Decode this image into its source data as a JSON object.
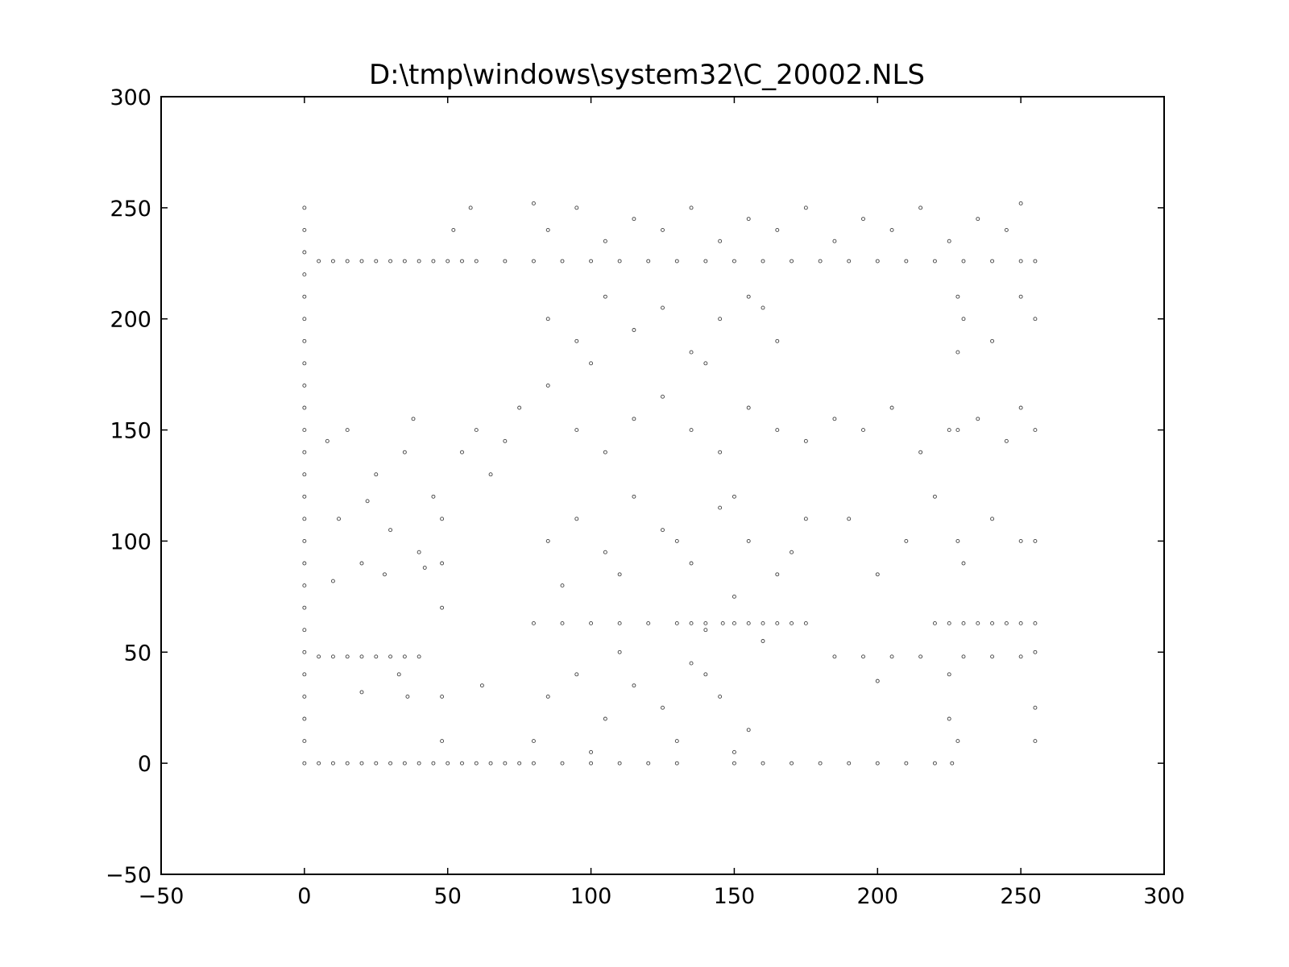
{
  "chart_data": {
    "type": "scatter",
    "title": "D:\\tmp\\windows\\system32\\C_20002.NLS",
    "xlabel": "",
    "ylabel": "",
    "xlim": [
      -50,
      300
    ],
    "ylim": [
      -50,
      300
    ],
    "xticks": [
      -50,
      0,
      50,
      100,
      150,
      200,
      250,
      300
    ],
    "yticks": [
      -50,
      0,
      50,
      100,
      150,
      200,
      250,
      300
    ],
    "xtick_labels": [
      "−50",
      "0",
      "50",
      "100",
      "150",
      "200",
      "250",
      "300"
    ],
    "ytick_labels": [
      "−50",
      "0",
      "50",
      "100",
      "150",
      "200",
      "250",
      "300"
    ],
    "grid": false,
    "marker": "hollow-circle",
    "marker_color": "#000000",
    "series": [
      {
        "points": [
          [
            0,
            0
          ],
          [
            0,
            10
          ],
          [
            0,
            20
          ],
          [
            0,
            30
          ],
          [
            0,
            40
          ],
          [
            0,
            50
          ],
          [
            0,
            60
          ],
          [
            0,
            70
          ],
          [
            0,
            80
          ],
          [
            0,
            90
          ],
          [
            0,
            100
          ],
          [
            0,
            110
          ],
          [
            0,
            120
          ],
          [
            0,
            130
          ],
          [
            0,
            140
          ],
          [
            0,
            150
          ],
          [
            0,
            160
          ],
          [
            0,
            170
          ],
          [
            0,
            180
          ],
          [
            0,
            190
          ],
          [
            0,
            200
          ],
          [
            0,
            210
          ],
          [
            0,
            220
          ],
          [
            0,
            230
          ],
          [
            0,
            240
          ],
          [
            0,
            250
          ],
          [
            5,
            0
          ],
          [
            10,
            0
          ],
          [
            15,
            0
          ],
          [
            20,
            0
          ],
          [
            25,
            0
          ],
          [
            30,
            0
          ],
          [
            35,
            0
          ],
          [
            40,
            0
          ],
          [
            45,
            0
          ],
          [
            50,
            0
          ],
          [
            55,
            0
          ],
          [
            60,
            0
          ],
          [
            65,
            0
          ],
          [
            70,
            0
          ],
          [
            75,
            0
          ],
          [
            80,
            0
          ],
          [
            90,
            0
          ],
          [
            100,
            0
          ],
          [
            110,
            0
          ],
          [
            120,
            0
          ],
          [
            130,
            0
          ],
          [
            150,
            0
          ],
          [
            160,
            0
          ],
          [
            170,
            0
          ],
          [
            180,
            0
          ],
          [
            190,
            0
          ],
          [
            200,
            0
          ],
          [
            210,
            0
          ],
          [
            220,
            0
          ],
          [
            226,
            0
          ],
          [
            80,
            63
          ],
          [
            90,
            63
          ],
          [
            100,
            63
          ],
          [
            110,
            63
          ],
          [
            120,
            63
          ],
          [
            130,
            63
          ],
          [
            135,
            63
          ],
          [
            140,
            63
          ],
          [
            146,
            63
          ],
          [
            150,
            63
          ],
          [
            155,
            63
          ],
          [
            160,
            63
          ],
          [
            165,
            63
          ],
          [
            170,
            63
          ],
          [
            175,
            63
          ],
          [
            220,
            63
          ],
          [
            225,
            63
          ],
          [
            230,
            63
          ],
          [
            235,
            63
          ],
          [
            240,
            63
          ],
          [
            245,
            63
          ],
          [
            250,
            63
          ],
          [
            255,
            63
          ],
          [
            5,
            226
          ],
          [
            10,
            226
          ],
          [
            15,
            226
          ],
          [
            20,
            226
          ],
          [
            25,
            226
          ],
          [
            30,
            226
          ],
          [
            35,
            226
          ],
          [
            40,
            226
          ],
          [
            45,
            226
          ],
          [
            50,
            226
          ],
          [
            55,
            226
          ],
          [
            60,
            226
          ],
          [
            70,
            226
          ],
          [
            80,
            226
          ],
          [
            90,
            226
          ],
          [
            100,
            226
          ],
          [
            110,
            226
          ],
          [
            120,
            226
          ],
          [
            130,
            226
          ],
          [
            140,
            226
          ],
          [
            150,
            226
          ],
          [
            160,
            226
          ],
          [
            170,
            226
          ],
          [
            180,
            226
          ],
          [
            190,
            226
          ],
          [
            200,
            226
          ],
          [
            210,
            226
          ],
          [
            220,
            226
          ],
          [
            230,
            226
          ],
          [
            240,
            226
          ],
          [
            250,
            226
          ],
          [
            255,
            226
          ],
          [
            5,
            48
          ],
          [
            10,
            48
          ],
          [
            15,
            48
          ],
          [
            20,
            48
          ],
          [
            25,
            48
          ],
          [
            30,
            48
          ],
          [
            35,
            48
          ],
          [
            40,
            48
          ],
          [
            185,
            48
          ],
          [
            195,
            48
          ],
          [
            205,
            48
          ],
          [
            215,
            48
          ],
          [
            230,
            48
          ],
          [
            240,
            48
          ],
          [
            250,
            48
          ],
          [
            10,
            82
          ],
          [
            20,
            90
          ],
          [
            30,
            105
          ],
          [
            40,
            95
          ],
          [
            25,
            130
          ],
          [
            15,
            150
          ],
          [
            35,
            140
          ],
          [
            45,
            120
          ],
          [
            12,
            110
          ],
          [
            28,
            85
          ],
          [
            38,
            155
          ],
          [
            8,
            145
          ],
          [
            22,
            118
          ],
          [
            42,
            88
          ],
          [
            55,
            140
          ],
          [
            60,
            150
          ],
          [
            65,
            130
          ],
          [
            70,
            145
          ],
          [
            75,
            160
          ],
          [
            85,
            170
          ],
          [
            95,
            150
          ],
          [
            105,
            140
          ],
          [
            115,
            155
          ],
          [
            125,
            165
          ],
          [
            135,
            150
          ],
          [
            145,
            140
          ],
          [
            155,
            160
          ],
          [
            165,
            150
          ],
          [
            175,
            145
          ],
          [
            185,
            155
          ],
          [
            195,
            150
          ],
          [
            205,
            160
          ],
          [
            215,
            140
          ],
          [
            225,
            150
          ],
          [
            235,
            155
          ],
          [
            245,
            145
          ],
          [
            250,
            160
          ],
          [
            85,
            100
          ],
          [
            95,
            110
          ],
          [
            105,
            95
          ],
          [
            115,
            120
          ],
          [
            125,
            105
          ],
          [
            135,
            90
          ],
          [
            145,
            115
          ],
          [
            155,
            100
          ],
          [
            165,
            85
          ],
          [
            175,
            110
          ],
          [
            90,
            80
          ],
          [
            110,
            85
          ],
          [
            130,
            100
          ],
          [
            150,
            120
          ],
          [
            170,
            95
          ],
          [
            190,
            110
          ],
          [
            210,
            100
          ],
          [
            230,
            90
          ],
          [
            240,
            110
          ],
          [
            250,
            100
          ],
          [
            200,
            85
          ],
          [
            220,
            120
          ],
          [
            85,
            200
          ],
          [
            95,
            190
          ],
          [
            105,
            210
          ],
          [
            115,
            195
          ],
          [
            125,
            205
          ],
          [
            135,
            185
          ],
          [
            145,
            200
          ],
          [
            155,
            210
          ],
          [
            165,
            190
          ],
          [
            230,
            200
          ],
          [
            240,
            190
          ],
          [
            250,
            210
          ],
          [
            100,
            180
          ],
          [
            140,
            180
          ],
          [
            160,
            205
          ],
          [
            228,
            185
          ],
          [
            85,
            240
          ],
          [
            95,
            250
          ],
          [
            105,
            235
          ],
          [
            115,
            245
          ],
          [
            125,
            240
          ],
          [
            135,
            250
          ],
          [
            145,
            235
          ],
          [
            155,
            245
          ],
          [
            165,
            240
          ],
          [
            175,
            250
          ],
          [
            185,
            235
          ],
          [
            195,
            245
          ],
          [
            205,
            240
          ],
          [
            215,
            250
          ],
          [
            225,
            235
          ],
          [
            235,
            245
          ],
          [
            245,
            240
          ],
          [
            250,
            252
          ],
          [
            52,
            240
          ],
          [
            58,
            250
          ],
          [
            80,
            252
          ],
          [
            85,
            30
          ],
          [
            95,
            40
          ],
          [
            105,
            20
          ],
          [
            115,
            35
          ],
          [
            125,
            25
          ],
          [
            135,
            45
          ],
          [
            145,
            30
          ],
          [
            155,
            15
          ],
          [
            80,
            10
          ],
          [
            100,
            5
          ],
          [
            130,
            10
          ],
          [
            150,
            5
          ],
          [
            225,
            20
          ],
          [
            225,
            40
          ],
          [
            228,
            10
          ],
          [
            255,
            10
          ],
          [
            255,
            25
          ],
          [
            110,
            50
          ],
          [
            140,
            40
          ],
          [
            160,
            55
          ],
          [
            48,
            30
          ],
          [
            48,
            10
          ],
          [
            62,
            35
          ],
          [
            36,
            30
          ],
          [
            33,
            40
          ],
          [
            20,
            32
          ],
          [
            200,
            37
          ],
          [
            255,
            50
          ],
          [
            255,
            100
          ],
          [
            255,
            150
          ],
          [
            255,
            200
          ],
          [
            228,
            100
          ],
          [
            228,
            150
          ],
          [
            228,
            210
          ],
          [
            140,
            60
          ],
          [
            150,
            75
          ],
          [
            48,
            70
          ],
          [
            48,
            90
          ],
          [
            48,
            110
          ]
        ]
      }
    ]
  }
}
